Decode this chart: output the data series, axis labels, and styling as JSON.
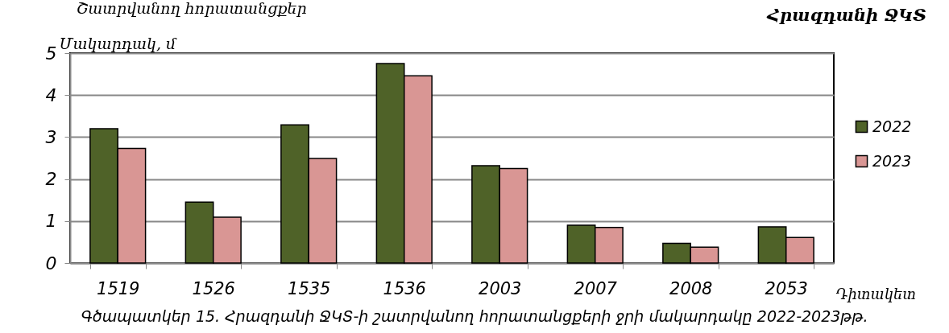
{
  "chart_data": {
    "type": "bar",
    "title": "Շատրվանող հորատանցքեր",
    "subtitle": "Հրազդանի ՋԿՏ",
    "ylabel": "Մակարդակ, մ",
    "xlabel": "Դիտակետ",
    "annotations": [
      "Գծապատկեր 15. Հրազդանի ՋԿՏ-ի շատրվանող հորատանցքերի ջրի մակարդակը 2022-2023թթ."
    ],
    "categories": [
      "1519",
      "1526",
      "1535",
      "1536",
      "2003",
      "2007",
      "2008",
      "2053"
    ],
    "series": [
      {
        "name": "2022",
        "color": "#4f6228",
        "values": [
          3.2,
          1.45,
          3.29,
          4.75,
          2.32,
          0.9,
          0.47,
          0.86
        ]
      },
      {
        "name": "2023",
        "color": "#d99694",
        "values": [
          2.73,
          1.09,
          2.49,
          4.46,
          2.25,
          0.85,
          0.38,
          0.61
        ]
      }
    ],
    "ylim": [
      0,
      5
    ],
    "yticks": [
      0,
      1,
      2,
      3,
      4,
      5
    ],
    "grid": "y",
    "legend": "right"
  }
}
